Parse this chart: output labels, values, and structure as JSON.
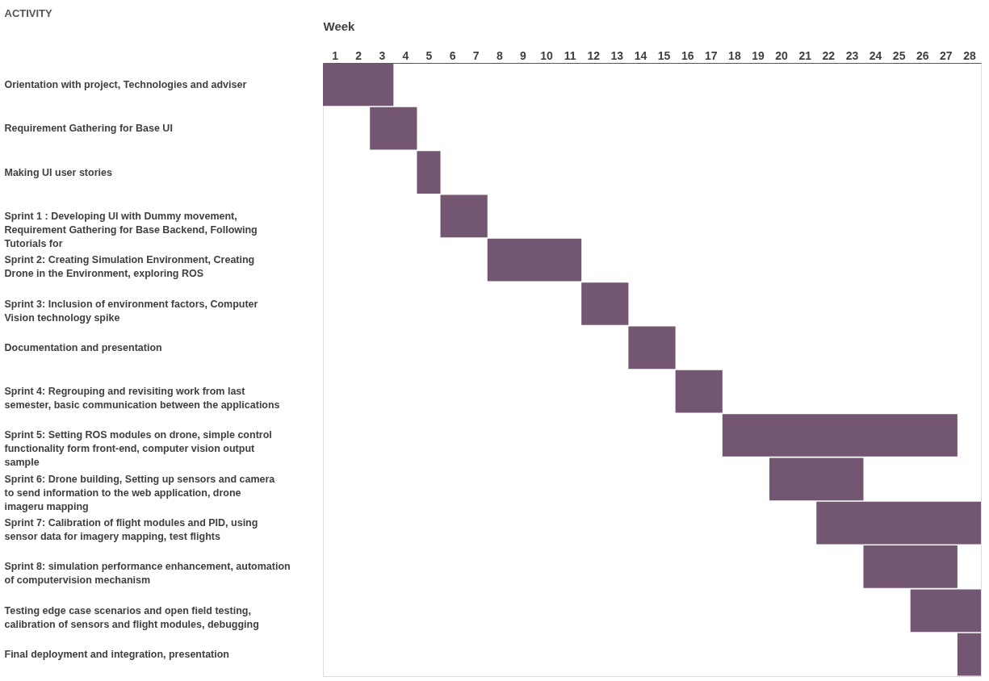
{
  "chart_data": {
    "type": "bar",
    "orientation": "horizontal",
    "xlabel": "Week",
    "ylabel": "ACTIVITY",
    "categories": [
      "Orientation with project, Technologies and adviser",
      "Requirement Gathering for Base UI",
      "Making UI user stories",
      "Sprint 1 : Developing UI with Dummy movement, Requirement Gathering for Base Backend, Following Tutorials for",
      "Sprint 2: Creating Simulation Environment, Creating Drone in the Environment, exploring ROS",
      "Sprint 3: Inclusion of environment factors, Computer Vision technology spike",
      "Documentation and presentation",
      "Sprint 4: Regrouping and revisiting work from last semester, basic communication between the applications",
      "Sprint 5: Setting ROS modules on drone, simple control functionality form front-end, computer vision output sample",
      "Sprint 6: Drone building, Setting up sensors and camera to send information to the web application, drone imageru mapping",
      "Sprint 7: Calibration of flight modules and PID, using sensor data for imagery mapping, test flights",
      "Sprint 8: simulation performance enhancement, automation of computervision mechanism",
      "Testing edge case scenarios and open field testing, calibration of sensors and flight modules, debugging",
      "Final deployment and integration, presentation"
    ],
    "base": [
      0,
      2,
      4,
      5,
      7,
      11,
      13,
      15,
      17,
      19,
      21,
      23,
      25,
      27
    ],
    "values": [
      3,
      2,
      1,
      2,
      4,
      2,
      2,
      2,
      10,
      4,
      7,
      4,
      3,
      1
    ],
    "color": "#735671",
    "xlim": [
      0,
      28
    ],
    "xticks": [
      {
        "value": 0.5,
        "label": "1"
      },
      {
        "value": 1.5,
        "label": "2"
      },
      {
        "value": 2.5,
        "label": "3"
      },
      {
        "value": 3.5,
        "label": "4"
      },
      {
        "value": 4.5,
        "label": "5"
      },
      {
        "value": 5.5,
        "label": "6"
      },
      {
        "value": 6.5,
        "label": "7"
      },
      {
        "value": 7.5,
        "label": "8"
      },
      {
        "value": 8.5,
        "label": "9"
      },
      {
        "value": 9.5,
        "label": "10"
      },
      {
        "value": 10.5,
        "label": "11"
      },
      {
        "value": 11.5,
        "label": "12"
      },
      {
        "value": 12.5,
        "label": "13"
      },
      {
        "value": 13.5,
        "label": "14"
      },
      {
        "value": 14.5,
        "label": "15"
      },
      {
        "value": 15.5,
        "label": "16"
      },
      {
        "value": 16.5,
        "label": "17"
      },
      {
        "value": 17.5,
        "label": "18"
      },
      {
        "value": 18.5,
        "label": "19"
      },
      {
        "value": 19.5,
        "label": "20"
      },
      {
        "value": 20.5,
        "label": "21"
      },
      {
        "value": 21.5,
        "label": "22"
      },
      {
        "value": 22.5,
        "label": "23"
      },
      {
        "value": 23.5,
        "label": "24"
      },
      {
        "value": 24.5,
        "label": "25"
      },
      {
        "value": 25.5,
        "label": "26"
      },
      {
        "value": 26.5,
        "label": "27"
      },
      {
        "value": 27.5,
        "label": "28"
      }
    ],
    "grid": false
  }
}
